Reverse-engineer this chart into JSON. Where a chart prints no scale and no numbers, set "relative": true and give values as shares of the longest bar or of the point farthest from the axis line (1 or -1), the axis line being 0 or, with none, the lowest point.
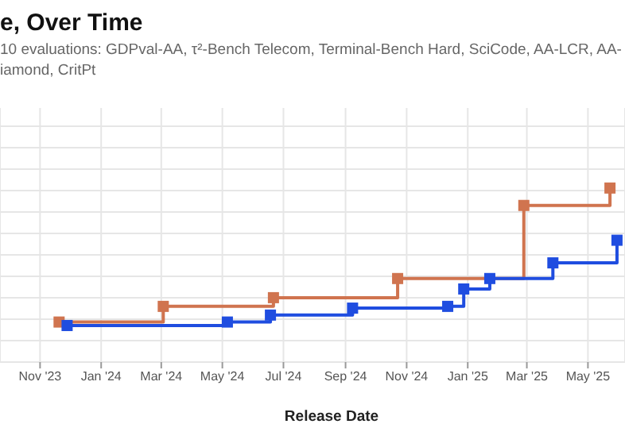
{
  "chart_data": {
    "type": "step",
    "title": "e, Over Time",
    "subtitle": "10 evaluations: GDPval-AA, τ²-Bench Telecom, Terminal-Bench Hard, SciCode, AA-LCR, AA-\niamond, CritPt",
    "xlabel": "Release Date",
    "relative": true,
    "marker": "square",
    "grid": true,
    "xlim": [
      "2023-09-22",
      "2025-06-07"
    ],
    "xticks": [
      {
        "value": "2023-11-01",
        "label": "Nov '23"
      },
      {
        "value": "2024-01-01",
        "label": "Jan '24"
      },
      {
        "value": "2024-03-01",
        "label": "Mar '24"
      },
      {
        "value": "2024-05-01",
        "label": "May '24"
      },
      {
        "value": "2024-07-01",
        "label": "Jul '24"
      },
      {
        "value": "2024-09-01",
        "label": "Sep '24"
      },
      {
        "value": "2024-11-01",
        "label": "Nov '24"
      },
      {
        "value": "2025-01-01",
        "label": "Jan '25"
      },
      {
        "value": "2025-03-01",
        "label": "Mar '25"
      },
      {
        "value": "2025-05-01",
        "label": "May '25"
      }
    ],
    "series": [
      {
        "color": "#d0744f",
        "x": [
          "2023-11-20",
          "2024-03-03",
          "2024-06-21",
          "2024-10-23",
          "2025-02-26",
          "2025-05-23"
        ],
        "values": [
          0.23,
          0.32,
          0.37,
          0.48,
          0.9,
          1.0
        ]
      },
      {
        "color": "#1f4de0",
        "x": [
          "2023-11-28",
          "2024-05-06",
          "2024-06-18",
          "2024-09-08",
          "2024-12-12",
          "2024-12-28",
          "2025-01-23",
          "2025-03-27",
          "2025-05-30"
        ],
        "values": [
          0.21,
          0.23,
          0.27,
          0.31,
          0.32,
          0.42,
          0.48,
          0.57,
          0.7
        ]
      }
    ]
  }
}
